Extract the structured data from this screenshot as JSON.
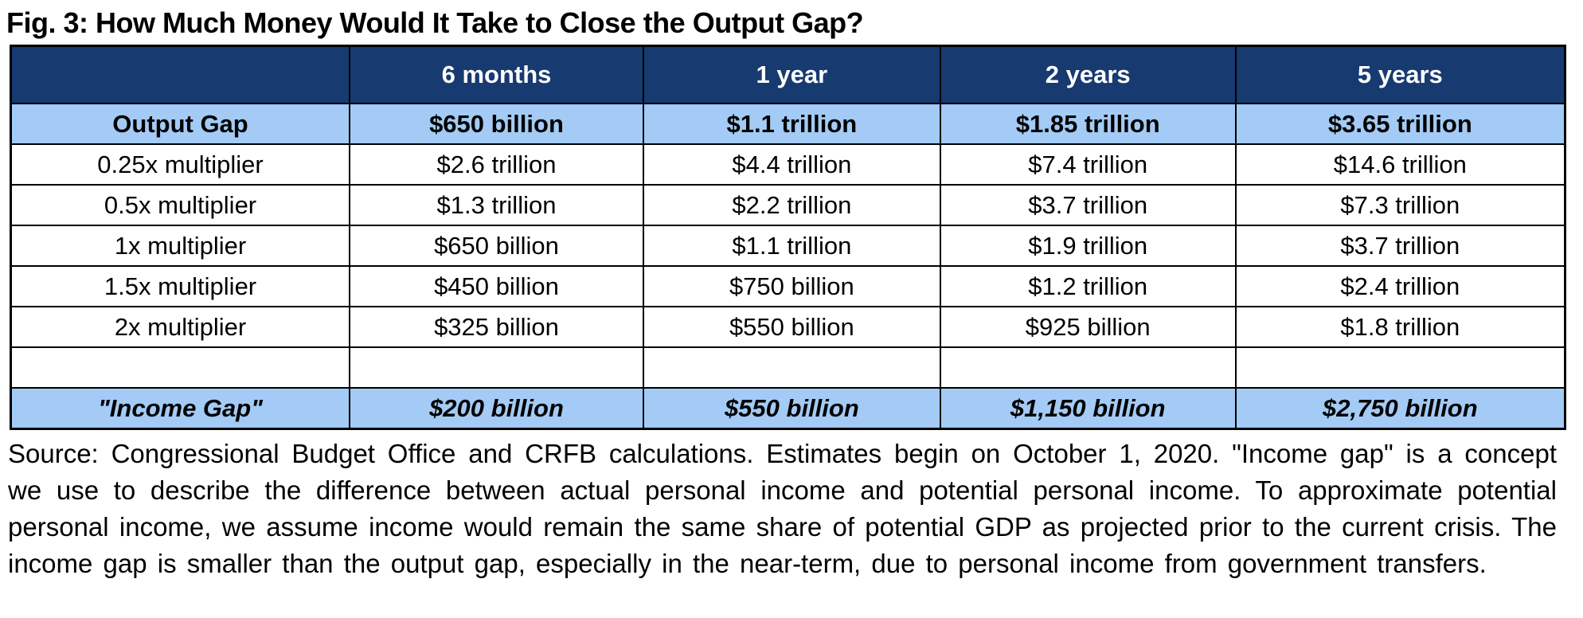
{
  "title": "Fig. 3: How Much Money Would It Take to Close the Output Gap?",
  "colors": {
    "header_bg": "#173A70",
    "header_text": "#FFFFFF",
    "highlight_bg": "#A3CBF5",
    "border": "#000000",
    "body_text": "#000000"
  },
  "chart_data": {
    "type": "table",
    "title": "Fig. 3: How Much Money Would It Take to Close the Output Gap?",
    "columns": [
      "",
      "6 months",
      "1 year",
      "2 years",
      "5 years"
    ],
    "rows": [
      {
        "label": "Output Gap",
        "style": "highlight-bold",
        "values": [
          "$650 billion",
          "$1.1 trillion",
          "$1.85 trillion",
          "$3.65 trillion"
        ]
      },
      {
        "label": "0.25x multiplier",
        "style": "normal",
        "values": [
          "$2.6 trillion",
          "$4.4 trillion",
          "$7.4 trillion",
          "$14.6 trillion"
        ]
      },
      {
        "label": "0.5x multiplier",
        "style": "normal",
        "values": [
          "$1.3 trillion",
          "$2.2 trillion",
          "$3.7 trillion",
          "$7.3 trillion"
        ]
      },
      {
        "label": "1x multiplier",
        "style": "normal",
        "values": [
          "$650 billion",
          "$1.1 trillion",
          "$1.9 trillion",
          "$3.7 trillion"
        ]
      },
      {
        "label": "1.5x multiplier",
        "style": "normal",
        "values": [
          "$450 billion",
          "$750 billion",
          "$1.2 trillion",
          "$2.4 trillion"
        ]
      },
      {
        "label": "2x multiplier",
        "style": "normal",
        "values": [
          "$325 billion",
          "$550 billion",
          "$925 billion",
          "$1.8 trillion"
        ]
      },
      {
        "label": "",
        "style": "empty",
        "values": [
          "",
          "",
          "",
          ""
        ]
      },
      {
        "label": "\"Income Gap\"",
        "style": "highlight-bold-italic",
        "values": [
          "$200 billion",
          "$550 billion",
          "$1,150 billion",
          "$2,750 billion"
        ]
      }
    ]
  },
  "source_note": "Source: Congressional Budget Office and CRFB calculations. Estimates begin on October 1, 2020. \"Income gap\" is a concept we use to describe the difference between actual personal income and potential personal income. To approximate potential personal income, we assume income would remain the same share of potential GDP as projected prior to the current crisis. The income gap is smaller than the output gap, especially in the near-term, due to personal income from government transfers."
}
